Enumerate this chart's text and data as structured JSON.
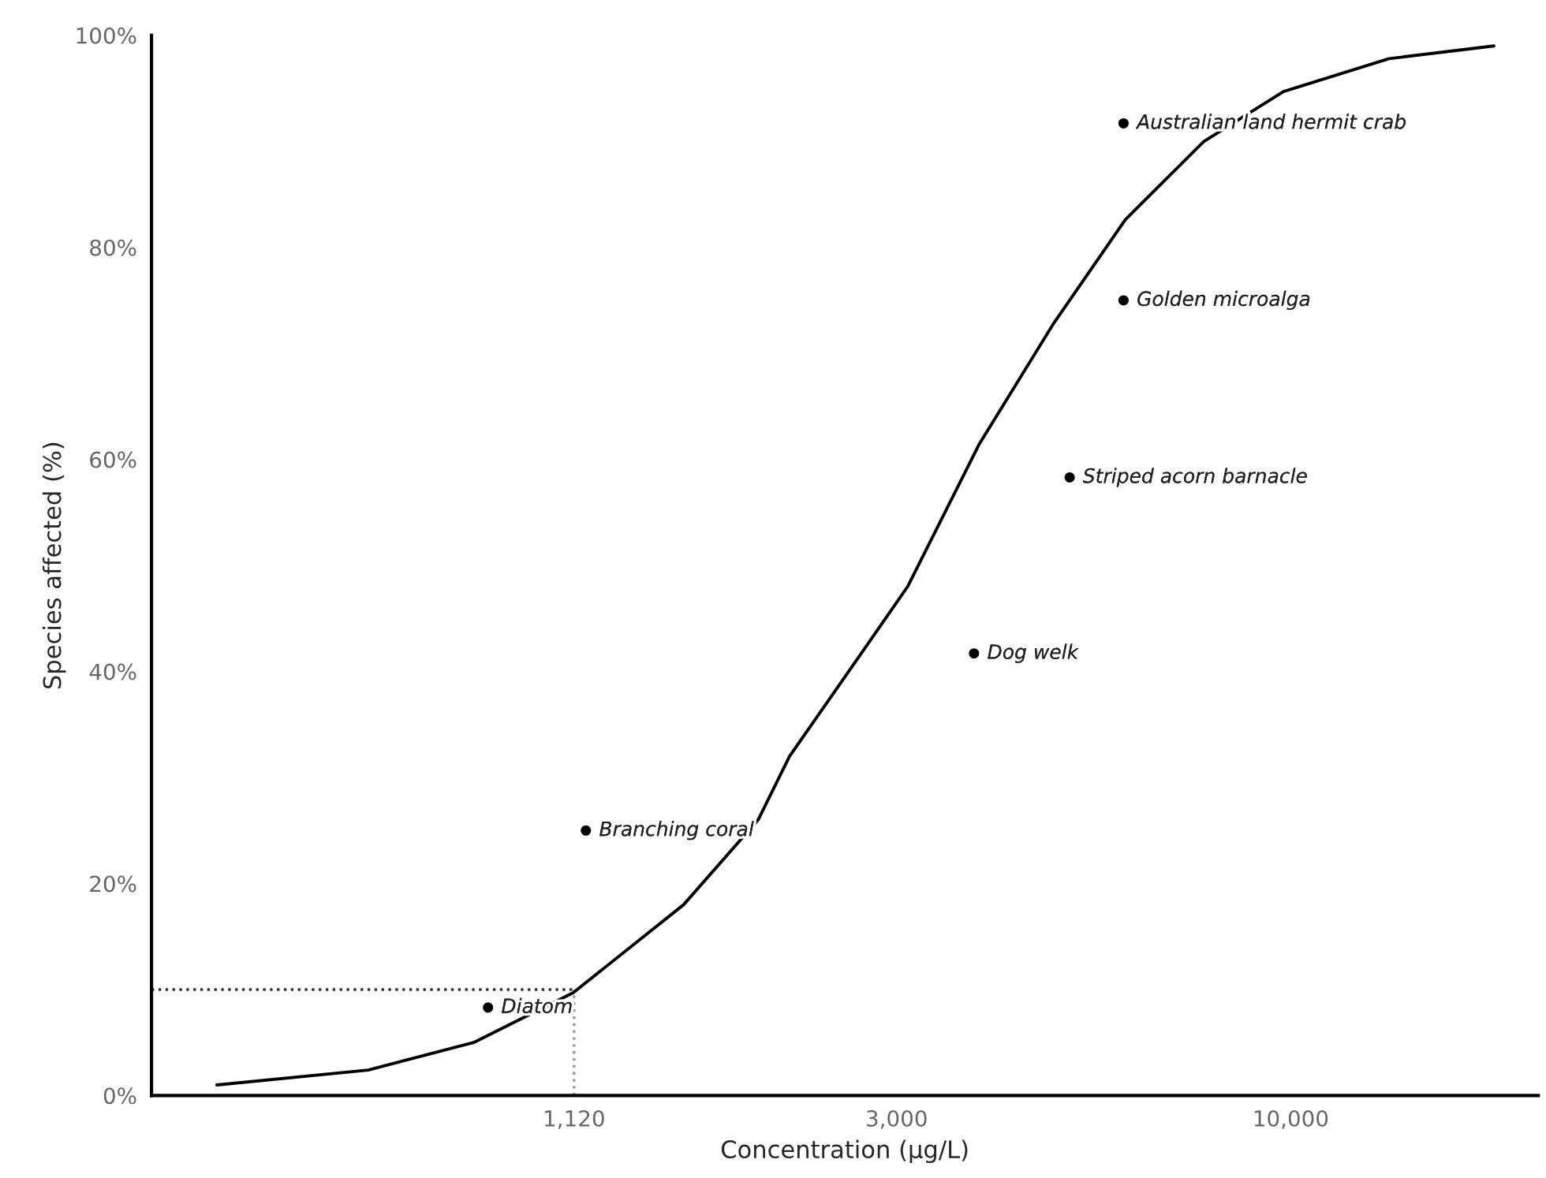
{
  "chart_data": {
    "type": "line",
    "xlabel": "Concentration (µg/L)",
    "ylabel": "Species affected (%)",
    "log": "x",
    "xlim": [
      308,
      21300
    ],
    "ylim": [
      0,
      100
    ],
    "xticks": [
      {
        "value": 1120,
        "label": "1,120"
      },
      {
        "value": 3000,
        "label": "3,000"
      },
      {
        "value": 10000,
        "label": "10,000"
      }
    ],
    "yticks": [
      {
        "value": 0,
        "label": "0%"
      },
      {
        "value": 20,
        "label": "20%"
      },
      {
        "value": 40,
        "label": "40%"
      },
      {
        "value": 60,
        "label": "60%"
      },
      {
        "value": 80,
        "label": "80%"
      },
      {
        "value": 100,
        "label": "100%"
      }
    ],
    "grid": false,
    "legend": false,
    "series": [
      {
        "color": "#000000",
        "marker": "none",
        "line_style": "solid",
        "x": [
          376,
          597,
          824,
          1117,
          1565,
          1965,
          2163,
          2711,
          3102,
          3858,
          4833,
          6030,
          7670,
          9780,
          13500,
          18600
        ],
        "values": [
          1.0,
          2.4,
          5.0,
          9.7,
          18,
          26,
          32,
          42,
          48,
          61.4,
          72.7,
          82.6,
          90,
          94.7,
          97.8,
          99
        ]
      },
      {
        "type": "scatter",
        "color": "#000000",
        "marker": "circle",
        "x": [
          861,
          1161,
          3800,
          5090,
          6000,
          6000
        ],
        "values": [
          8.3,
          25,
          41.7,
          58.3,
          75,
          91.7
        ]
      }
    ],
    "ref_lines": [
      {
        "axis": "y",
        "value": 10,
        "color": "#333333",
        "line_style": "dotted"
      },
      {
        "axis": "x",
        "value": 1120,
        "color": "#999999",
        "line_style": "dotted"
      }
    ],
    "annotations": [
      {
        "text": "Diatom",
        "x": 861,
        "y": 8.3
      },
      {
        "text": "Branching coral",
        "x": 1161,
        "y": 25
      },
      {
        "text": "Dog welk",
        "x": 3800,
        "y": 41.7
      },
      {
        "text": "Striped acorn barnacle",
        "x": 5090,
        "y": 58.3
      },
      {
        "text": "Golden microalga",
        "x": 6000,
        "y": 75
      },
      {
        "text": "Australian land hermit crab",
        "x": 6000,
        "y": 91.7
      }
    ]
  }
}
